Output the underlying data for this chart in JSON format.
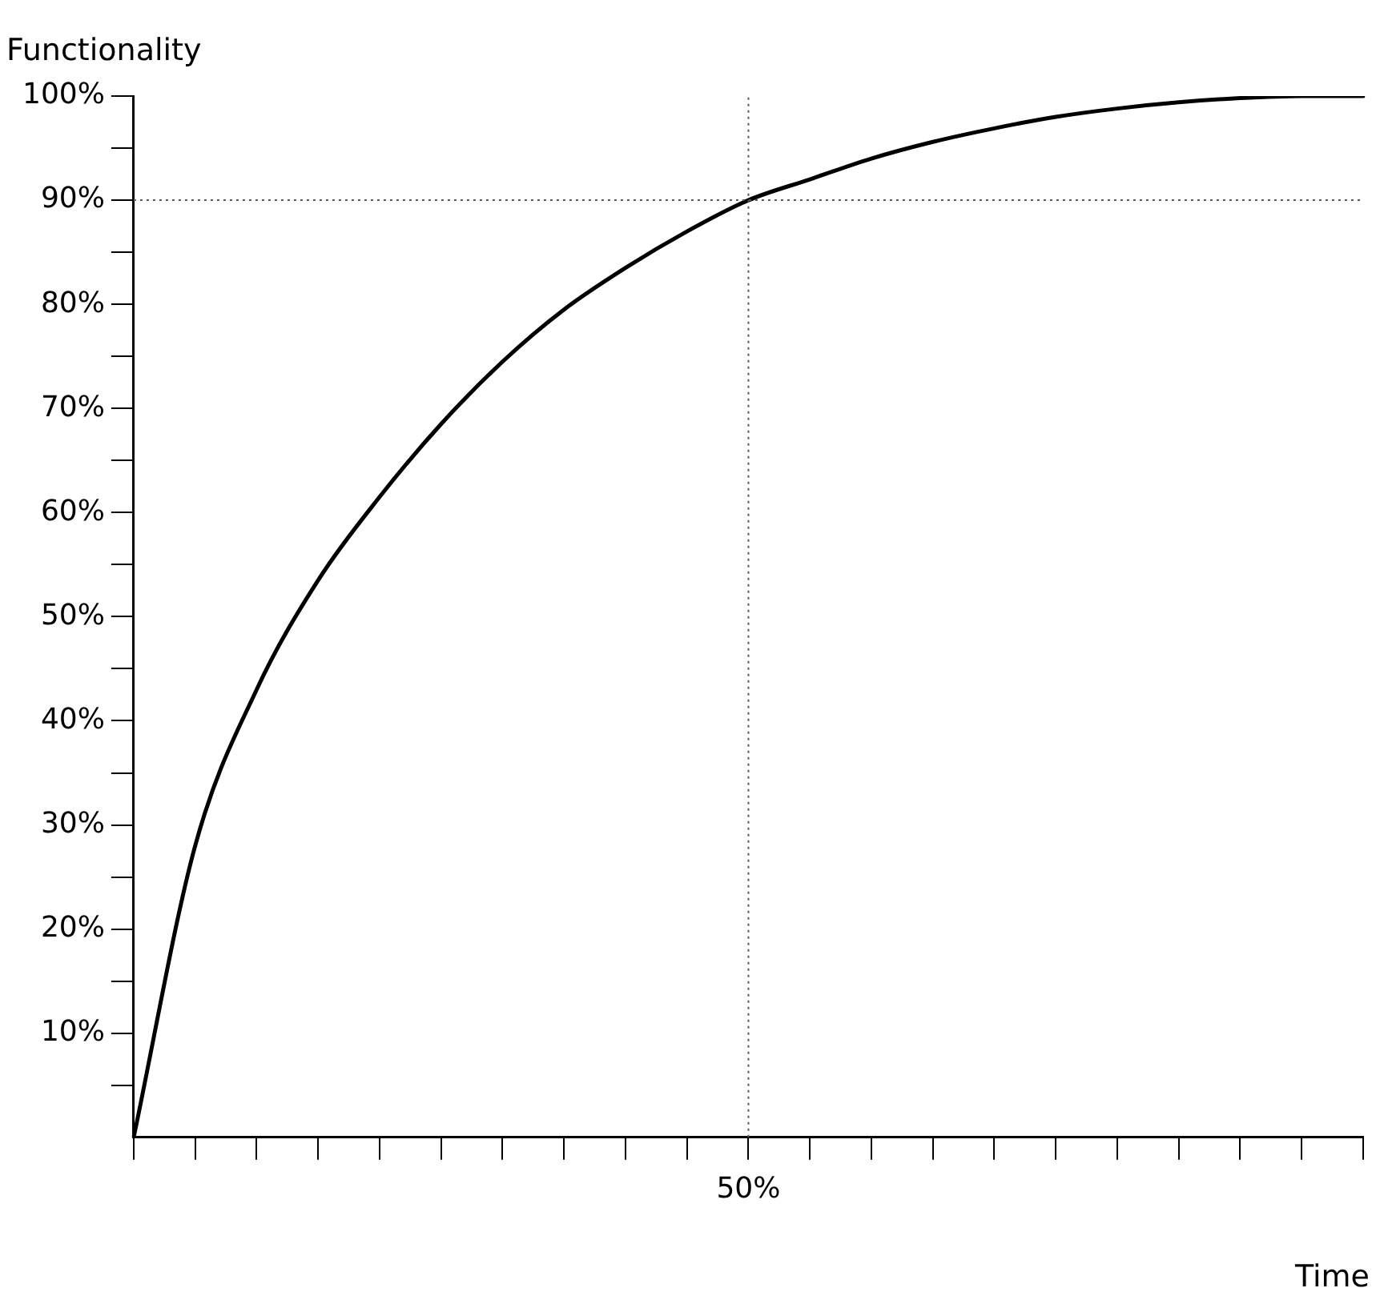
{
  "chart_data": {
    "type": "line",
    "xlabel": "Time",
    "ylabel": "Functionality",
    "ylim": [
      0,
      100
    ],
    "yticks": [
      {
        "value": 5,
        "label": null
      },
      {
        "value": 10,
        "label": "10%"
      },
      {
        "value": 15,
        "label": null
      },
      {
        "value": 20,
        "label": "20%"
      },
      {
        "value": 25,
        "label": null
      },
      {
        "value": 30,
        "label": "30%"
      },
      {
        "value": 35,
        "label": null
      },
      {
        "value": 40,
        "label": "40%"
      },
      {
        "value": 45,
        "label": null
      },
      {
        "value": 50,
        "label": "50%"
      },
      {
        "value": 55,
        "label": null
      },
      {
        "value": 60,
        "label": "60%"
      },
      {
        "value": 65,
        "label": null
      },
      {
        "value": 70,
        "label": "70%"
      },
      {
        "value": 75,
        "label": null
      },
      {
        "value": 80,
        "label": "80%"
      },
      {
        "value": 85,
        "label": null
      },
      {
        "value": 90,
        "label": "90%"
      },
      {
        "value": 95,
        "label": null
      },
      {
        "value": 100,
        "label": "100%"
      }
    ],
    "categories": [
      null,
      null,
      null,
      null,
      null,
      null,
      null,
      null,
      null,
      null,
      "50%",
      null,
      null,
      null,
      null,
      null,
      null,
      null,
      null,
      null,
      null
    ],
    "series": [
      {
        "color": "#000000",
        "values": [
          0,
          28,
          43,
          53.5,
          61.5,
          68.5,
          74.5,
          79.5,
          83.5,
          87,
          90,
          92,
          94,
          95.6,
          96.9,
          98,
          98.8,
          99.4,
          99.8,
          100,
          100
        ]
      }
    ],
    "ref_lines": [
      {
        "axis": "x",
        "value": "50%",
        "color": "#555555",
        "line_style": "dotted"
      },
      {
        "axis": "y",
        "value": 90,
        "color": "#555555",
        "line_style": "dotted"
      }
    ],
    "grid": false,
    "legend": false,
    "marker": "none",
    "line_style": "solid"
  }
}
